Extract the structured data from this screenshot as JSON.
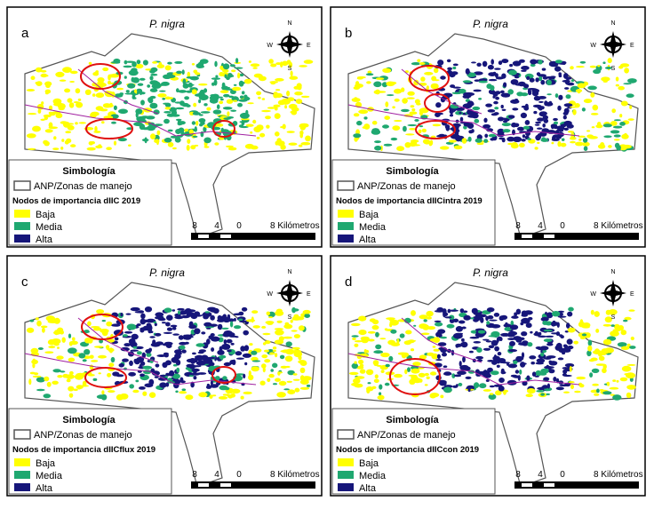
{
  "panels": [
    {
      "label": "a",
      "species": "P. nigra",
      "compass": [
        "N",
        "W",
        "E",
        "S"
      ],
      "legend": {
        "title": "Simbología",
        "boundary": "ANP/Zonas de manejo",
        "subtitle": "Nodos de importancia dIIC 2019",
        "classes": [
          {
            "label": "Baja",
            "color": "#ffff00"
          },
          {
            "label": "Media",
            "color": "#1fa870"
          },
          {
            "label": "Alta",
            "color": "#16167a"
          }
        ]
      },
      "scale": {
        "ticks": [
          "8",
          "4",
          "0"
        ],
        "end": "8 Kilómetros"
      }
    },
    {
      "label": "b",
      "species": "P. nigra",
      "compass": [
        "N",
        "W",
        "E",
        "S"
      ],
      "legend": {
        "title": "Simbología",
        "boundary": "ANP/Zonas de manejo",
        "subtitle": "Nodos de importancia dIICintra 2019",
        "classes": [
          {
            "label": "Baja",
            "color": "#ffff00"
          },
          {
            "label": "Media",
            "color": "#1fa870"
          },
          {
            "label": "Alta",
            "color": "#16167a"
          }
        ]
      },
      "scale": {
        "ticks": [
          "8",
          "4",
          "0"
        ],
        "end": "8 Kilómetros"
      }
    },
    {
      "label": "c",
      "species": "P. nigra",
      "compass": [
        "N",
        "W",
        "E",
        "S"
      ],
      "legend": {
        "title": "Simbología",
        "boundary": "ANP/Zonas de manejo",
        "subtitle": "Nodos de importancia dIICflux 2019",
        "classes": [
          {
            "label": "Baja",
            "color": "#ffff00"
          },
          {
            "label": "Media",
            "color": "#1fa870"
          },
          {
            "label": "Alta",
            "color": "#16167a"
          }
        ]
      },
      "scale": {
        "ticks": [
          "8",
          "4",
          "0"
        ],
        "end": "8 Kilómetros"
      }
    },
    {
      "label": "d",
      "species": "P. nigra",
      "compass": [
        "N",
        "W",
        "E",
        "S"
      ],
      "legend": {
        "title": "Simbología",
        "boundary": "ANP/Zonas de manejo",
        "subtitle": "Nodos de importancia dIICcon 2019",
        "classes": [
          {
            "label": "Baja",
            "color": "#ffff00"
          },
          {
            "label": "Media",
            "color": "#1fa870"
          },
          {
            "label": "Alta",
            "color": "#16167a"
          }
        ]
      },
      "scale": {
        "ticks": [
          "8",
          "4",
          "0"
        ],
        "end": "8 Kilómetros"
      }
    }
  ]
}
